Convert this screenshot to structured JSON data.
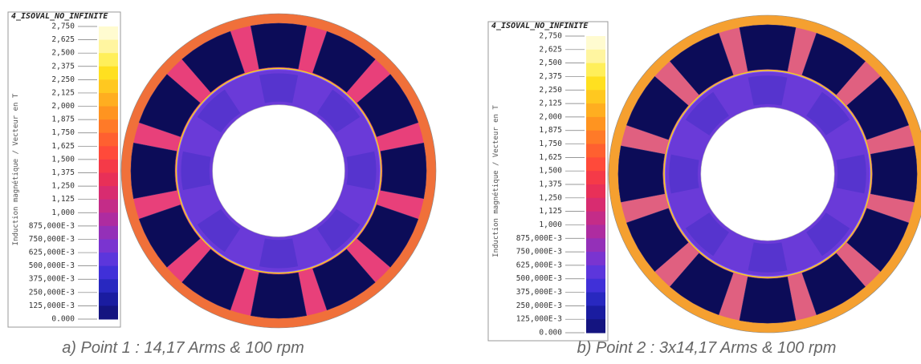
{
  "panels": [
    {
      "legend_title": "4_ISOVAL_NO_INFINITE",
      "axis_label": "Induction magnétique / Vecteur en T",
      "ticks": [
        "2,750",
        "2,625",
        "2,500",
        "2,375",
        "2,250",
        "2,125",
        "2,000",
        "1,875",
        "1,750",
        "1,625",
        "1,500",
        "1,375",
        "1,250",
        "1,125",
        "1,000",
        "875,000E-3",
        "750,000E-3",
        "625,000E-3",
        "500,000E-3",
        "375,000E-3",
        "250,000E-3",
        "125,000E-3",
        "0.000"
      ],
      "caption": "a) Point 1 : 14,17 Arms & 100 rpm"
    },
    {
      "legend_title": "4_ISOVAL_NO_INFINITE",
      "axis_label": "Induction magnétique / Vecteur en T",
      "ticks": [
        "2,750",
        "2,625",
        "2,500",
        "2,375",
        "2,250",
        "2,125",
        "2,000",
        "1,875",
        "1,750",
        "1,625",
        "1,500",
        "1,375",
        "1,250",
        "1,125",
        "1,000",
        "875,000E-3",
        "750,000E-3",
        "625,000E-3",
        "500,000E-3",
        "375,000E-3",
        "250,000E-3",
        "125,000E-3",
        "0.000"
      ],
      "caption": "b) Point 2 : 3x14,17 Arms & 100 rpm"
    }
  ]
}
